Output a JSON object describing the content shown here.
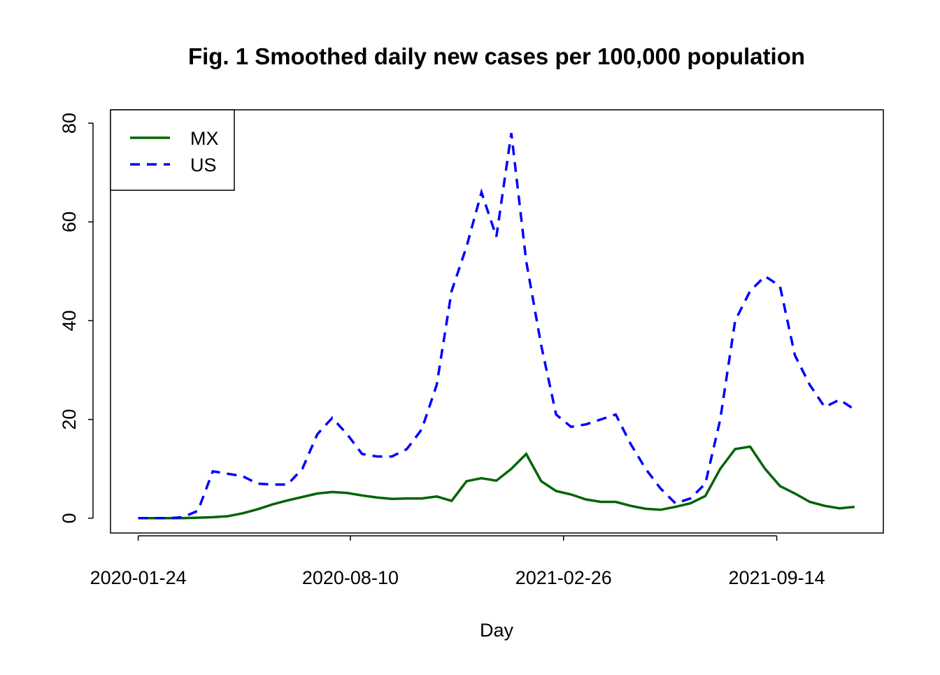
{
  "chart_data": {
    "type": "line",
    "title": "Fig. 1 Smoothed daily new cases per 100,000 population",
    "x_label": "Day",
    "x": [
      "2020-01-24",
      "2020-02-07",
      "2020-02-21",
      "2020-03-06",
      "2020-03-20",
      "2020-04-03",
      "2020-04-17",
      "2020-05-01",
      "2020-05-15",
      "2020-05-29",
      "2020-06-12",
      "2020-06-26",
      "2020-07-10",
      "2020-07-24",
      "2020-08-07",
      "2020-08-21",
      "2020-09-04",
      "2020-09-18",
      "2020-10-02",
      "2020-10-16",
      "2020-10-30",
      "2020-11-13",
      "2020-11-27",
      "2020-12-11",
      "2020-12-25",
      "2021-01-08",
      "2021-01-22",
      "2021-02-05",
      "2021-02-19",
      "2021-03-05",
      "2021-03-19",
      "2021-04-02",
      "2021-04-16",
      "2021-04-30",
      "2021-05-14",
      "2021-05-28",
      "2021-06-11",
      "2021-06-25",
      "2021-07-09",
      "2021-07-23",
      "2021-08-06",
      "2021-08-20",
      "2021-09-03",
      "2021-09-17",
      "2021-10-01",
      "2021-10-15",
      "2021-10-29",
      "2021-11-12",
      "2021-11-26"
    ],
    "series": [
      {
        "name": "MX",
        "color": "#006400",
        "dash": "solid",
        "values": [
          0,
          0,
          0,
          0,
          0.1,
          0.2,
          0.4,
          1,
          1.8,
          2.8,
          3.6,
          4.3,
          5,
          5.3,
          5.1,
          4.6,
          4.2,
          3.9,
          4,
          4,
          4.4,
          3.5,
          7.5,
          8.1,
          7.6,
          10,
          13,
          7.5,
          5.5,
          4.8,
          3.8,
          3.3,
          3.3,
          2.5,
          1.9,
          1.7,
          2.3,
          3,
          4.5,
          10,
          14,
          14.5,
          10,
          6.5,
          5,
          3.3,
          2.5,
          2,
          2.3
        ]
      },
      {
        "name": "US",
        "color": "#0000ff",
        "dash": "dashed",
        "values": [
          0,
          0,
          0,
          0.2,
          1.5,
          9.5,
          9,
          8.5,
          7,
          6.8,
          6.8,
          10,
          17,
          20.3,
          17,
          13,
          12.5,
          12.5,
          14,
          18,
          27,
          46,
          55,
          66,
          57,
          78,
          52,
          35,
          21,
          18.5,
          19,
          20,
          21,
          15,
          10,
          6,
          3,
          4,
          7,
          20,
          40,
          46,
          49,
          47,
          33,
          27,
          22.5,
          24,
          22
        ]
      }
    ],
    "xlim": [
      "2019-12-29",
      "2021-12-23"
    ],
    "xticks": [
      "2020-01-24",
      "2020-08-10",
      "2021-02-26",
      "2021-09-14"
    ],
    "ylim": [
      -3.0,
      82.7
    ],
    "yticks": [
      0,
      20,
      40,
      60,
      80
    ],
    "legend": "top-left"
  }
}
